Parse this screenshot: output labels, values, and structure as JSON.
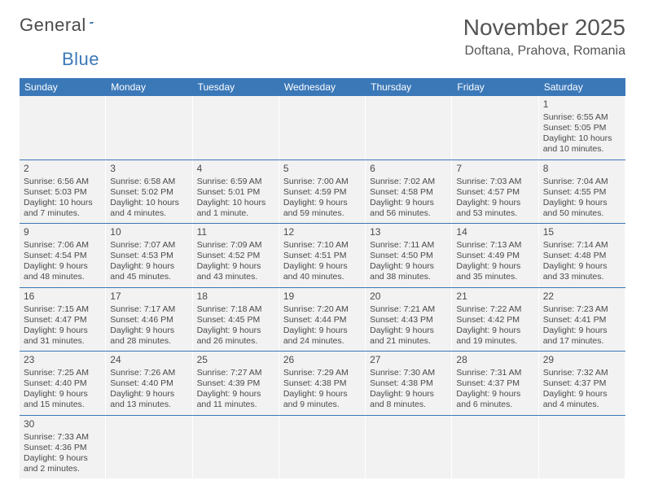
{
  "logo": {
    "word1": "General",
    "word2": "Blue"
  },
  "title": "November 2025",
  "location": "Doftana, Prahova, Romania",
  "weekdays": [
    "Sunday",
    "Monday",
    "Tuesday",
    "Wednesday",
    "Thursday",
    "Friday",
    "Saturday"
  ],
  "colors": {
    "header_bg": "#3b78b8",
    "cell_bg": "#f2f2f2",
    "week_border": "#3b78b8",
    "text": "#4a4a4a"
  },
  "weeks": [
    [
      null,
      null,
      null,
      null,
      null,
      null,
      {
        "n": "1",
        "sunrise": "Sunrise: 6:55 AM",
        "sunset": "Sunset: 5:05 PM",
        "daylight": "Daylight: 10 hours and 10 minutes."
      }
    ],
    [
      {
        "n": "2",
        "sunrise": "Sunrise: 6:56 AM",
        "sunset": "Sunset: 5:03 PM",
        "daylight": "Daylight: 10 hours and 7 minutes."
      },
      {
        "n": "3",
        "sunrise": "Sunrise: 6:58 AM",
        "sunset": "Sunset: 5:02 PM",
        "daylight": "Daylight: 10 hours and 4 minutes."
      },
      {
        "n": "4",
        "sunrise": "Sunrise: 6:59 AM",
        "sunset": "Sunset: 5:01 PM",
        "daylight": "Daylight: 10 hours and 1 minute."
      },
      {
        "n": "5",
        "sunrise": "Sunrise: 7:00 AM",
        "sunset": "Sunset: 4:59 PM",
        "daylight": "Daylight: 9 hours and 59 minutes."
      },
      {
        "n": "6",
        "sunrise": "Sunrise: 7:02 AM",
        "sunset": "Sunset: 4:58 PM",
        "daylight": "Daylight: 9 hours and 56 minutes."
      },
      {
        "n": "7",
        "sunrise": "Sunrise: 7:03 AM",
        "sunset": "Sunset: 4:57 PM",
        "daylight": "Daylight: 9 hours and 53 minutes."
      },
      {
        "n": "8",
        "sunrise": "Sunrise: 7:04 AM",
        "sunset": "Sunset: 4:55 PM",
        "daylight": "Daylight: 9 hours and 50 minutes."
      }
    ],
    [
      {
        "n": "9",
        "sunrise": "Sunrise: 7:06 AM",
        "sunset": "Sunset: 4:54 PM",
        "daylight": "Daylight: 9 hours and 48 minutes."
      },
      {
        "n": "10",
        "sunrise": "Sunrise: 7:07 AM",
        "sunset": "Sunset: 4:53 PM",
        "daylight": "Daylight: 9 hours and 45 minutes."
      },
      {
        "n": "11",
        "sunrise": "Sunrise: 7:09 AM",
        "sunset": "Sunset: 4:52 PM",
        "daylight": "Daylight: 9 hours and 43 minutes."
      },
      {
        "n": "12",
        "sunrise": "Sunrise: 7:10 AM",
        "sunset": "Sunset: 4:51 PM",
        "daylight": "Daylight: 9 hours and 40 minutes."
      },
      {
        "n": "13",
        "sunrise": "Sunrise: 7:11 AM",
        "sunset": "Sunset: 4:50 PM",
        "daylight": "Daylight: 9 hours and 38 minutes."
      },
      {
        "n": "14",
        "sunrise": "Sunrise: 7:13 AM",
        "sunset": "Sunset: 4:49 PM",
        "daylight": "Daylight: 9 hours and 35 minutes."
      },
      {
        "n": "15",
        "sunrise": "Sunrise: 7:14 AM",
        "sunset": "Sunset: 4:48 PM",
        "daylight": "Daylight: 9 hours and 33 minutes."
      }
    ],
    [
      {
        "n": "16",
        "sunrise": "Sunrise: 7:15 AM",
        "sunset": "Sunset: 4:47 PM",
        "daylight": "Daylight: 9 hours and 31 minutes."
      },
      {
        "n": "17",
        "sunrise": "Sunrise: 7:17 AM",
        "sunset": "Sunset: 4:46 PM",
        "daylight": "Daylight: 9 hours and 28 minutes."
      },
      {
        "n": "18",
        "sunrise": "Sunrise: 7:18 AM",
        "sunset": "Sunset: 4:45 PM",
        "daylight": "Daylight: 9 hours and 26 minutes."
      },
      {
        "n": "19",
        "sunrise": "Sunrise: 7:20 AM",
        "sunset": "Sunset: 4:44 PM",
        "daylight": "Daylight: 9 hours and 24 minutes."
      },
      {
        "n": "20",
        "sunrise": "Sunrise: 7:21 AM",
        "sunset": "Sunset: 4:43 PM",
        "daylight": "Daylight: 9 hours and 21 minutes."
      },
      {
        "n": "21",
        "sunrise": "Sunrise: 7:22 AM",
        "sunset": "Sunset: 4:42 PM",
        "daylight": "Daylight: 9 hours and 19 minutes."
      },
      {
        "n": "22",
        "sunrise": "Sunrise: 7:23 AM",
        "sunset": "Sunset: 4:41 PM",
        "daylight": "Daylight: 9 hours and 17 minutes."
      }
    ],
    [
      {
        "n": "23",
        "sunrise": "Sunrise: 7:25 AM",
        "sunset": "Sunset: 4:40 PM",
        "daylight": "Daylight: 9 hours and 15 minutes."
      },
      {
        "n": "24",
        "sunrise": "Sunrise: 7:26 AM",
        "sunset": "Sunset: 4:40 PM",
        "daylight": "Daylight: 9 hours and 13 minutes."
      },
      {
        "n": "25",
        "sunrise": "Sunrise: 7:27 AM",
        "sunset": "Sunset: 4:39 PM",
        "daylight": "Daylight: 9 hours and 11 minutes."
      },
      {
        "n": "26",
        "sunrise": "Sunrise: 7:29 AM",
        "sunset": "Sunset: 4:38 PM",
        "daylight": "Daylight: 9 hours and 9 minutes."
      },
      {
        "n": "27",
        "sunrise": "Sunrise: 7:30 AM",
        "sunset": "Sunset: 4:38 PM",
        "daylight": "Daylight: 9 hours and 8 minutes."
      },
      {
        "n": "28",
        "sunrise": "Sunrise: 7:31 AM",
        "sunset": "Sunset: 4:37 PM",
        "daylight": "Daylight: 9 hours and 6 minutes."
      },
      {
        "n": "29",
        "sunrise": "Sunrise: 7:32 AM",
        "sunset": "Sunset: 4:37 PM",
        "daylight": "Daylight: 9 hours and 4 minutes."
      }
    ],
    [
      {
        "n": "30",
        "sunrise": "Sunrise: 7:33 AM",
        "sunset": "Sunset: 4:36 PM",
        "daylight": "Daylight: 9 hours and 2 minutes."
      },
      null,
      null,
      null,
      null,
      null,
      null
    ]
  ]
}
